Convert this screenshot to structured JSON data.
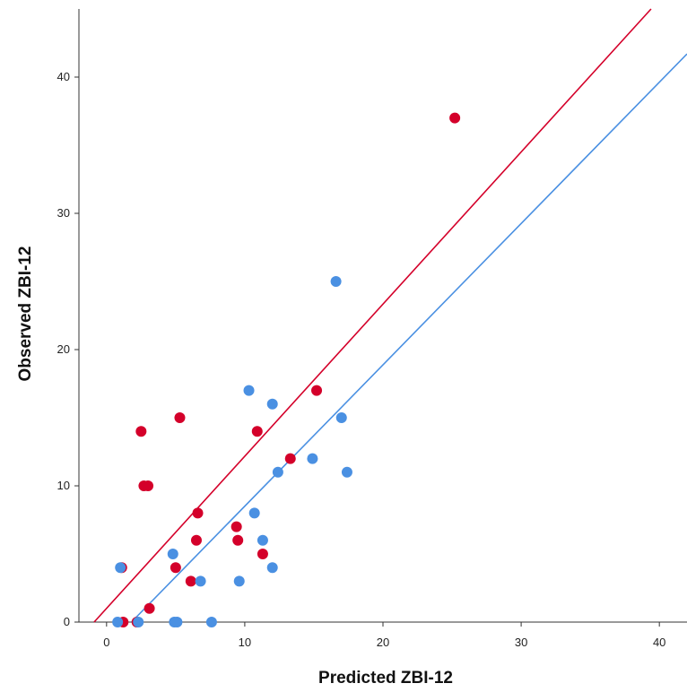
{
  "chart_data": {
    "type": "scatter",
    "title": "",
    "xlabel": "Predicted ZBI-12",
    "ylabel": "Observed ZBI-12",
    "xlim": [
      -2,
      42
    ],
    "ylim": [
      0,
      45
    ],
    "xticks": [
      0,
      10,
      20,
      30,
      40
    ],
    "yticks": [
      0,
      10,
      20,
      30,
      40
    ],
    "grid": false,
    "legend": "none",
    "series": [
      {
        "color": "#d4002a",
        "points": [
          {
            "x": 1.1,
            "y": 4
          },
          {
            "x": 1.2,
            "y": 0
          },
          {
            "x": 2.2,
            "y": 0
          },
          {
            "x": 2.5,
            "y": 14
          },
          {
            "x": 2.7,
            "y": 10
          },
          {
            "x": 3.0,
            "y": 10
          },
          {
            "x": 3.1,
            "y": 1
          },
          {
            "x": 5.0,
            "y": 4
          },
          {
            "x": 5.3,
            "y": 15
          },
          {
            "x": 6.1,
            "y": 3
          },
          {
            "x": 6.5,
            "y": 6
          },
          {
            "x": 6.6,
            "y": 8
          },
          {
            "x": 9.4,
            "y": 7
          },
          {
            "x": 9.5,
            "y": 6
          },
          {
            "x": 10.9,
            "y": 14
          },
          {
            "x": 11.3,
            "y": 5
          },
          {
            "x": 13.3,
            "y": 12
          },
          {
            "x": 15.2,
            "y": 17
          },
          {
            "x": 25.2,
            "y": 37
          }
        ],
        "fit_line": {
          "x": [
            -0.9,
            39.4
          ],
          "y": [
            0,
            45
          ]
        }
      },
      {
        "color": "#4a90e2",
        "points": [
          {
            "x": 0.8,
            "y": 0
          },
          {
            "x": 1.0,
            "y": 4
          },
          {
            "x": 2.3,
            "y": 0
          },
          {
            "x": 4.8,
            "y": 5
          },
          {
            "x": 4.9,
            "y": 0
          },
          {
            "x": 5.1,
            "y": 0
          },
          {
            "x": 6.8,
            "y": 3
          },
          {
            "x": 7.6,
            "y": 0
          },
          {
            "x": 9.6,
            "y": 3
          },
          {
            "x": 10.3,
            "y": 17
          },
          {
            "x": 10.7,
            "y": 8
          },
          {
            "x": 11.3,
            "y": 6
          },
          {
            "x": 12.0,
            "y": 16
          },
          {
            "x": 12.0,
            "y": 4
          },
          {
            "x": 12.4,
            "y": 11
          },
          {
            "x": 14.9,
            "y": 12
          },
          {
            "x": 16.6,
            "y": 25
          },
          {
            "x": 17.0,
            "y": 15
          },
          {
            "x": 17.4,
            "y": 11
          }
        ],
        "fit_line": {
          "x": [
            1.8,
            42
          ],
          "y": [
            0,
            41.7
          ]
        }
      }
    ]
  }
}
